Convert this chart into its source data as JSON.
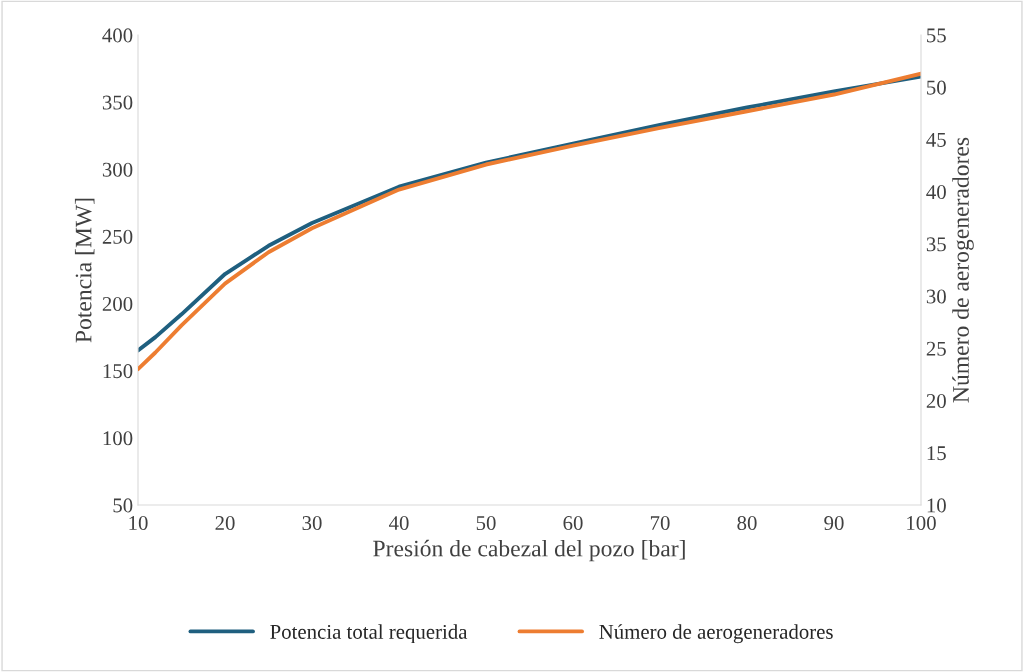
{
  "chart_data": {
    "type": "line",
    "xlabel": "Presión de cabezal del pozo [bar]",
    "ylabel": "Potencia [MW]",
    "y2label": "Número de aerogeneradores",
    "xlim": [
      10,
      100
    ],
    "xticks": [
      10,
      20,
      30,
      40,
      50,
      60,
      70,
      80,
      90,
      100
    ],
    "ylim": [
      50,
      400
    ],
    "yticks": [
      50,
      100,
      150,
      200,
      250,
      300,
      350,
      400
    ],
    "y2lim": [
      10,
      55
    ],
    "y2ticks": [
      10,
      15,
      20,
      25,
      30,
      35,
      40,
      45,
      50,
      55
    ],
    "grid": false,
    "legend": "bottom",
    "marker": "none",
    "line_style": "solid",
    "x": [
      10,
      12,
      15,
      20,
      25,
      30,
      40,
      50,
      60,
      70,
      80,
      90,
      100
    ],
    "series": [
      {
        "name": "Potencia total requerida",
        "color": "#1f5f7f",
        "values": [
          165,
          175,
          192,
          222,
          243,
          260,
          287,
          305,
          319,
          333,
          346,
          358,
          369
        ]
      },
      {
        "name": "Número de aerogeneradores",
        "color": "#ed7d31",
        "axis": "y2",
        "values": [
          23,
          24.6,
          27.2,
          31.2,
          34.2,
          36.5,
          40.2,
          42.6,
          44.4,
          46.1,
          47.7,
          49.3,
          51.3
        ]
      }
    ]
  }
}
